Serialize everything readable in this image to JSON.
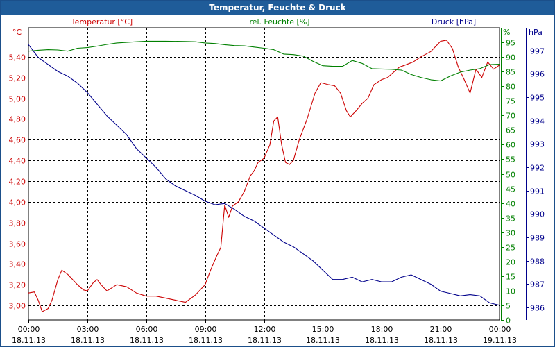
{
  "window": {
    "title": "Temperatur, Feuchte & Druck"
  },
  "chart_data": {
    "type": "line",
    "title": "Temperatur, Feuchte & Druck",
    "x_labels": [
      {
        "time": "00:00",
        "date": "18.11.13"
      },
      {
        "time": "03:00",
        "date": "18.11.13"
      },
      {
        "time": "06:00",
        "date": "18.11.13"
      },
      {
        "time": "09:00",
        "date": "18.11.13"
      },
      {
        "time": "12:00",
        "date": "18.11.13"
      },
      {
        "time": "15:00",
        "date": "18.11.13"
      },
      {
        "time": "18:00",
        "date": "18.11.13"
      },
      {
        "time": "21:00",
        "date": "18.11.13"
      },
      {
        "time": "00:00",
        "date": "19.11.13"
      }
    ],
    "x_range_hours": [
      0,
      24
    ],
    "grid": true,
    "axes": {
      "temperature": {
        "label": "Temperatur [°C]",
        "unit": "°C",
        "color": "#cc0000",
        "range": [
          2.86,
          5.68
        ],
        "ticks": [
          "3,00",
          "3,20",
          "3,40",
          "3,60",
          "3,80",
          "4,00",
          "4,20",
          "4,40",
          "4,60",
          "4,80",
          "5,00",
          "5,20",
          "5,40"
        ]
      },
      "humidity": {
        "label": "rel. Feuchte [%]",
        "unit": "%",
        "color": "#008000",
        "range": [
          0,
          100
        ],
        "ticks": [
          "0",
          "5",
          "10",
          "15",
          "20",
          "25",
          "30",
          "35",
          "40",
          "45",
          "50",
          "55",
          "60",
          "65",
          "70",
          "75",
          "80",
          "85",
          "90",
          "95"
        ]
      },
      "pressure": {
        "label": "Druck [hPa]",
        "unit": "hPa",
        "color": "#00008b",
        "range": [
          985.47,
          997.97
        ],
        "ticks": [
          "986",
          "987",
          "988",
          "989",
          "990",
          "991",
          "992",
          "993",
          "994",
          "995",
          "996",
          "997"
        ]
      }
    },
    "series": [
      {
        "name": "Temperatur [°C]",
        "axis": "temperature",
        "color": "#cc0000",
        "points": [
          [
            0,
            3.12
          ],
          [
            0.3,
            3.13
          ],
          [
            0.5,
            3.05
          ],
          [
            0.7,
            2.94
          ],
          [
            1.0,
            2.97
          ],
          [
            1.2,
            3.05
          ],
          [
            1.5,
            3.25
          ],
          [
            1.7,
            3.34
          ],
          [
            2.0,
            3.3
          ],
          [
            2.5,
            3.2
          ],
          [
            2.8,
            3.15
          ],
          [
            3.0,
            3.14
          ],
          [
            3.3,
            3.22
          ],
          [
            3.5,
            3.25
          ],
          [
            3.7,
            3.2
          ],
          [
            4.0,
            3.14
          ],
          [
            4.5,
            3.2
          ],
          [
            5.0,
            3.18
          ],
          [
            5.5,
            3.12
          ],
          [
            6.0,
            3.09
          ],
          [
            6.5,
            3.09
          ],
          [
            7.0,
            3.07
          ],
          [
            7.5,
            3.05
          ],
          [
            8.0,
            3.03
          ],
          [
            8.5,
            3.1
          ],
          [
            9.0,
            3.2
          ],
          [
            9.3,
            3.35
          ],
          [
            9.6,
            3.48
          ],
          [
            9.8,
            3.56
          ],
          [
            10.0,
            3.97
          ],
          [
            10.2,
            3.85
          ],
          [
            10.4,
            3.96
          ],
          [
            10.7,
            4.0
          ],
          [
            11.0,
            4.1
          ],
          [
            11.3,
            4.25
          ],
          [
            11.5,
            4.3
          ],
          [
            11.7,
            4.38
          ],
          [
            12.0,
            4.42
          ],
          [
            12.3,
            4.55
          ],
          [
            12.5,
            4.78
          ],
          [
            12.7,
            4.82
          ],
          [
            12.9,
            4.55
          ],
          [
            13.1,
            4.38
          ],
          [
            13.3,
            4.36
          ],
          [
            13.5,
            4.4
          ],
          [
            13.8,
            4.6
          ],
          [
            14.2,
            4.8
          ],
          [
            14.6,
            5.05
          ],
          [
            14.9,
            5.15
          ],
          [
            15.3,
            5.13
          ],
          [
            15.6,
            5.12
          ],
          [
            15.9,
            5.05
          ],
          [
            16.2,
            4.88
          ],
          [
            16.4,
            4.82
          ],
          [
            16.7,
            4.88
          ],
          [
            17.0,
            4.95
          ],
          [
            17.3,
            5.0
          ],
          [
            17.6,
            5.13
          ],
          [
            18.0,
            5.18
          ],
          [
            18.3,
            5.2
          ],
          [
            18.6,
            5.25
          ],
          [
            18.9,
            5.3
          ],
          [
            19.2,
            5.32
          ],
          [
            19.6,
            5.35
          ],
          [
            20.0,
            5.4
          ],
          [
            20.5,
            5.45
          ],
          [
            21.0,
            5.55
          ],
          [
            21.3,
            5.56
          ],
          [
            21.6,
            5.48
          ],
          [
            21.9,
            5.3
          ],
          [
            22.2,
            5.18
          ],
          [
            22.5,
            5.05
          ],
          [
            22.8,
            5.28
          ],
          [
            23.1,
            5.2
          ],
          [
            23.4,
            5.35
          ],
          [
            23.7,
            5.28
          ],
          [
            24.0,
            5.32
          ]
        ]
      },
      {
        "name": "rel. Feuchte [%]",
        "axis": "humidity",
        "color": "#008000",
        "points": [
          [
            0,
            92
          ],
          [
            0.5,
            92.3
          ],
          [
            1.0,
            92.5
          ],
          [
            1.5,
            92.4
          ],
          [
            2.0,
            92
          ],
          [
            2.5,
            93
          ],
          [
            3.0,
            93.2
          ],
          [
            3.5,
            93.7
          ],
          [
            4.0,
            94.3
          ],
          [
            4.5,
            94.8
          ],
          [
            5.0,
            95
          ],
          [
            5.5,
            95.2
          ],
          [
            6.0,
            95.4
          ],
          [
            7.0,
            95.4
          ],
          [
            8.0,
            95.3
          ],
          [
            8.5,
            95.2
          ],
          [
            9.0,
            94.8
          ],
          [
            9.5,
            94.6
          ],
          [
            10.0,
            94.2
          ],
          [
            10.5,
            93.9
          ],
          [
            11.0,
            93.8
          ],
          [
            11.5,
            93.4
          ],
          [
            12.0,
            93
          ],
          [
            12.5,
            92.5
          ],
          [
            13.0,
            91
          ],
          [
            13.5,
            90.8
          ],
          [
            14.0,
            90.3
          ],
          [
            14.5,
            88.5
          ],
          [
            15.0,
            87
          ],
          [
            15.5,
            86.8
          ],
          [
            16.0,
            86.8
          ],
          [
            16.5,
            88.8
          ],
          [
            17.0,
            87.8
          ],
          [
            17.5,
            86
          ],
          [
            18.0,
            85.9
          ],
          [
            18.5,
            85.8
          ],
          [
            19.0,
            85.5
          ],
          [
            19.5,
            84
          ],
          [
            20.0,
            83
          ],
          [
            20.5,
            82.2
          ],
          [
            21.0,
            81.8
          ],
          [
            21.5,
            83.5
          ],
          [
            22.0,
            84.8
          ],
          [
            22.5,
            85.5
          ],
          [
            23.0,
            86
          ],
          [
            23.5,
            87.4
          ],
          [
            24.0,
            87.5
          ]
        ]
      },
      {
        "name": "Druck [hPa]",
        "axis": "pressure",
        "color": "#00008b",
        "points": [
          [
            0,
            997.25
          ],
          [
            0.5,
            996.7
          ],
          [
            1.0,
            996.4
          ],
          [
            1.5,
            996.1
          ],
          [
            2.0,
            995.9
          ],
          [
            2.5,
            995.6
          ],
          [
            3.0,
            995.2
          ],
          [
            3.5,
            994.7
          ],
          [
            4.0,
            994.2
          ],
          [
            4.5,
            993.8
          ],
          [
            5.0,
            993.4
          ],
          [
            5.5,
            992.8
          ],
          [
            6.0,
            992.4
          ],
          [
            6.5,
            992.0
          ],
          [
            7.0,
            991.5
          ],
          [
            7.5,
            991.2
          ],
          [
            8.0,
            991.0
          ],
          [
            8.5,
            990.8
          ],
          [
            9.0,
            990.55
          ],
          [
            9.5,
            990.4
          ],
          [
            10.0,
            990.45
          ],
          [
            10.5,
            990.2
          ],
          [
            11.0,
            989.9
          ],
          [
            11.5,
            989.7
          ],
          [
            12.0,
            989.4
          ],
          [
            12.5,
            989.1
          ],
          [
            13.0,
            988.8
          ],
          [
            13.5,
            988.6
          ],
          [
            14.0,
            988.3
          ],
          [
            14.5,
            988.0
          ],
          [
            15.0,
            987.6
          ],
          [
            15.5,
            987.2
          ],
          [
            16.0,
            987.2
          ],
          [
            16.5,
            987.3
          ],
          [
            17.0,
            987.1
          ],
          [
            17.5,
            987.2
          ],
          [
            18.0,
            987.1
          ],
          [
            18.5,
            987.1
          ],
          [
            19.0,
            987.3
          ],
          [
            19.5,
            987.4
          ],
          [
            20.0,
            987.2
          ],
          [
            20.5,
            987.0
          ],
          [
            21.0,
            986.7
          ],
          [
            21.5,
            986.6
          ],
          [
            22.0,
            986.5
          ],
          [
            22.5,
            986.55
          ],
          [
            23.0,
            986.5
          ],
          [
            23.5,
            986.2
          ],
          [
            24.0,
            986.1
          ]
        ]
      }
    ]
  }
}
